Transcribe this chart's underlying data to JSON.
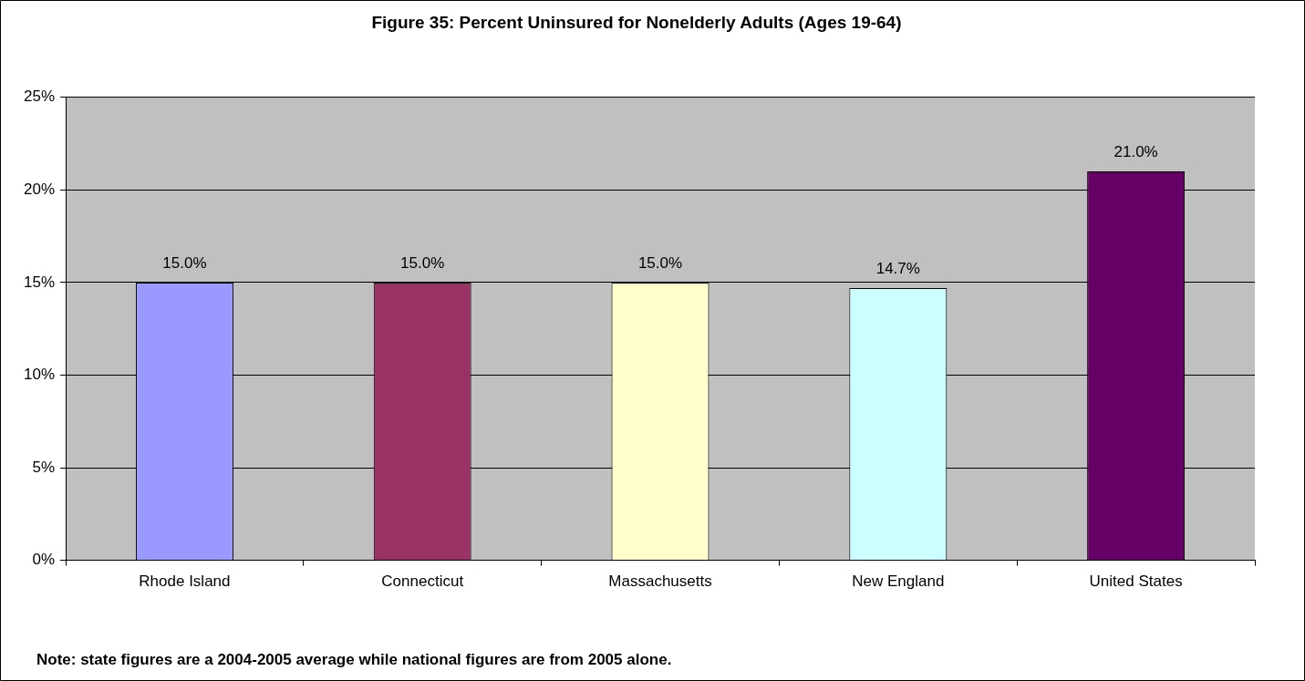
{
  "chart_data": {
    "type": "bar",
    "title": "Figure 35: Percent Uninsured for Nonelderly Adults (Ages 19-64)",
    "categories": [
      "Rhode Island",
      "Connecticut",
      "Massachusetts",
      "New England",
      "United States"
    ],
    "values": [
      15,
      15,
      15,
      14.7,
      21
    ],
    "colors": [
      "#9999ff",
      "#993366",
      "#ffffcc",
      "#ccffff",
      "#660066"
    ],
    "value_labels": [
      "15.0%",
      "15.0%",
      "15.0%",
      "14.7%",
      "21.0%"
    ],
    "ylim": [
      0,
      25
    ],
    "yticks": [
      {
        "value": 0,
        "label": "0%"
      },
      {
        "value": 5,
        "label": "5%"
      },
      {
        "value": 10,
        "label": "10%"
      },
      {
        "value": 15,
        "label": "15%"
      },
      {
        "value": 20,
        "label": "20%"
      },
      {
        "value": 25,
        "label": "25%"
      }
    ],
    "grid": "y",
    "legend": false,
    "annotations": [
      "Note: state figures are a 2004-2005 average while national figures are from 2005 alone."
    ]
  }
}
